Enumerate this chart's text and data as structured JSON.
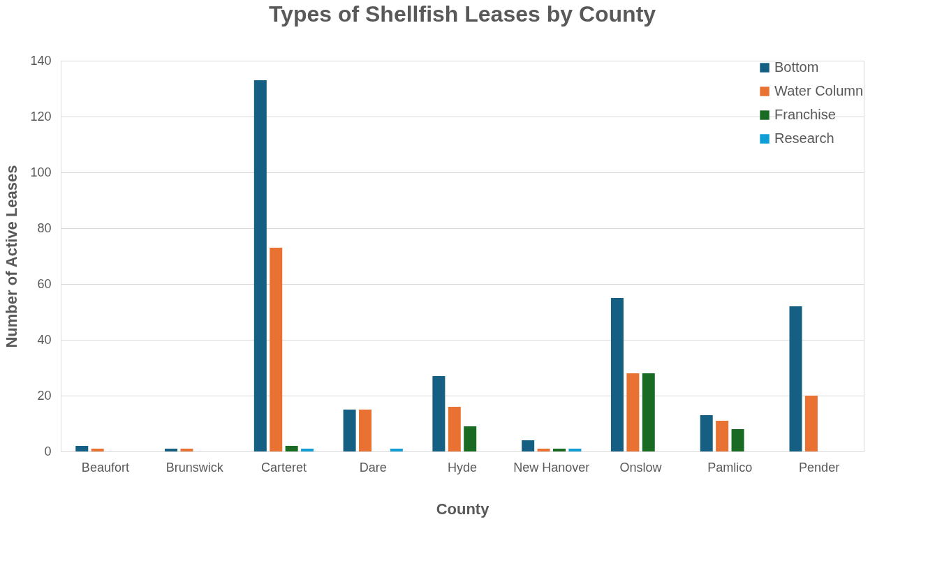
{
  "chart_data": {
    "type": "bar",
    "title": "Types of Shellfish Leases by County",
    "xlabel": "County",
    "ylabel": "Number of Active Leases",
    "categories": [
      "Beaufort",
      "Brunswick",
      "Carteret",
      "Dare",
      "Hyde",
      "New Hanover",
      "Onslow",
      "Pamlico",
      "Pender"
    ],
    "series": [
      {
        "name": "Bottom",
        "color": "#156082",
        "values": [
          2,
          1,
          133,
          15,
          27,
          4,
          55,
          13,
          52
        ]
      },
      {
        "name": "Water Column",
        "color": "#e97132",
        "values": [
          1,
          1,
          73,
          15,
          16,
          1,
          28,
          11,
          20
        ]
      },
      {
        "name": "Franchise",
        "color": "#196b24",
        "values": [
          0,
          0,
          2,
          0,
          9,
          1,
          28,
          8,
          0
        ]
      },
      {
        "name": "Research",
        "color": "#0f9ed5",
        "values": [
          0,
          0,
          1,
          1,
          0,
          1,
          0,
          0,
          0
        ]
      }
    ],
    "ylim": [
      0,
      140
    ],
    "yticks": [
      0,
      20,
      40,
      60,
      80,
      100,
      120,
      140
    ],
    "grid": "y",
    "legend": "top right"
  }
}
